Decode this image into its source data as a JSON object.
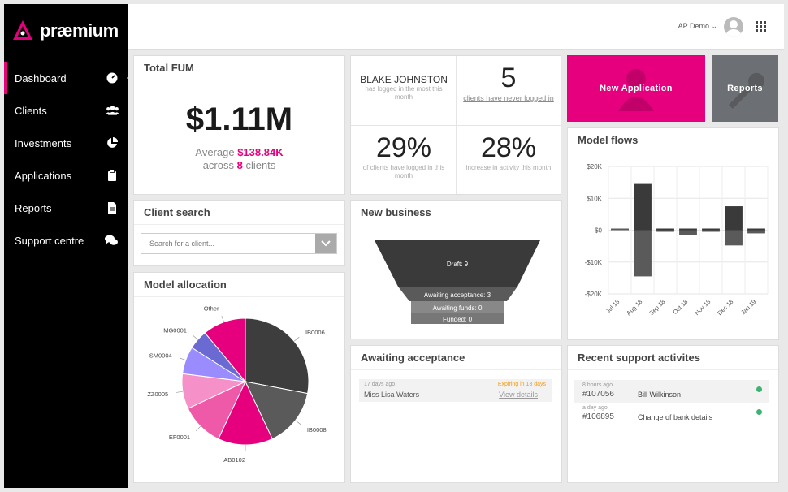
{
  "brand": {
    "name": "præmium",
    "accent": "#e6007e"
  },
  "sidebar": {
    "items": [
      {
        "label": "Dashboard",
        "icon": "dashboard-gauge-icon"
      },
      {
        "label": "Clients",
        "icon": "users-icon"
      },
      {
        "label": "Investments",
        "icon": "pie-chart-icon"
      },
      {
        "label": "Applications",
        "icon": "clipboard-icon"
      },
      {
        "label": "Reports",
        "icon": "document-icon"
      },
      {
        "label": "Support centre",
        "icon": "chat-icon"
      }
    ]
  },
  "header": {
    "user": "AP Demo ⌄"
  },
  "fum": {
    "title": "Total FUM",
    "value": "$1.11M",
    "avg_prefix": "Average ",
    "avg_value": "$138.84K",
    "across_prefix": "across ",
    "client_count": "8",
    "across_suffix": " clients"
  },
  "search": {
    "title": "Client search",
    "placeholder": "Search for a client..."
  },
  "model_allocation": {
    "title": "Model allocation",
    "chart_data": {
      "type": "pie",
      "slices": [
        {
          "label": "IB0006",
          "value": 28,
          "color": "#3d3d3d"
        },
        {
          "label": "IB0008",
          "value": 15,
          "color": "#5a5a5a"
        },
        {
          "label": "AB0102",
          "value": 14,
          "color": "#e6007e"
        },
        {
          "label": "EF0001",
          "value": 11,
          "color": "#ee5aa8"
        },
        {
          "label": "ZZ0005",
          "value": 9,
          "color": "#f590c8"
        },
        {
          "label": "SM0004",
          "value": 7,
          "color": "#9a8cff"
        },
        {
          "label": "MG0001",
          "value": 5,
          "color": "#6a6ad2"
        },
        {
          "label": "Other",
          "value": 11,
          "color": "#e6007e"
        }
      ]
    }
  },
  "stats": {
    "user_name": "BLAKE JOHNSTON",
    "user_sub": "has logged in the most this month",
    "never_value": "5",
    "never_sub": "clients have never logged in",
    "logged_value": "29%",
    "logged_sub": "of clients have logged in this month",
    "activity_value": "28%",
    "activity_sub": "increase in activity this month"
  },
  "new_business": {
    "title": "New business",
    "stages": [
      "Draft: 9",
      "Awaiting acceptance: 3",
      "Awaiting funds: 0",
      "Funded: 0"
    ]
  },
  "awaiting": {
    "title": "Awaiting acceptance",
    "rows": [
      {
        "when": "17 days ago",
        "name": "Miss Lisa Waters",
        "expiry": "Expiring in 13 days",
        "link": "View details"
      }
    ]
  },
  "tiles": {
    "new_application": "New Application",
    "reports": "Reports"
  },
  "model_flows": {
    "title": "Model flows",
    "chart_data": {
      "type": "bar",
      "categories": [
        "Jul 18",
        "Aug 18",
        "Sep 18",
        "Oct 18",
        "Nov 18",
        "Dec 18",
        "Jan 19"
      ],
      "series": [
        {
          "values": [
            0,
            14500,
            0,
            0,
            0,
            7500,
            0
          ]
        },
        {
          "values": [
            0,
            -14500,
            -200,
            -1500,
            -300,
            -4800,
            -1000
          ]
        }
      ],
      "ylim": [
        -20000,
        20000
      ],
      "yticks": [
        "$20K",
        "$10K",
        "$0",
        "-$10K",
        "-$20K"
      ],
      "grid": true
    }
  },
  "support": {
    "title": "Recent support activites",
    "rows": [
      {
        "when": "8 hours ago",
        "ticket": "#107056",
        "name": "Bill Wilkinson"
      },
      {
        "when": "a day ago",
        "ticket": "#106895",
        "name": "Change of bank details"
      }
    ]
  }
}
